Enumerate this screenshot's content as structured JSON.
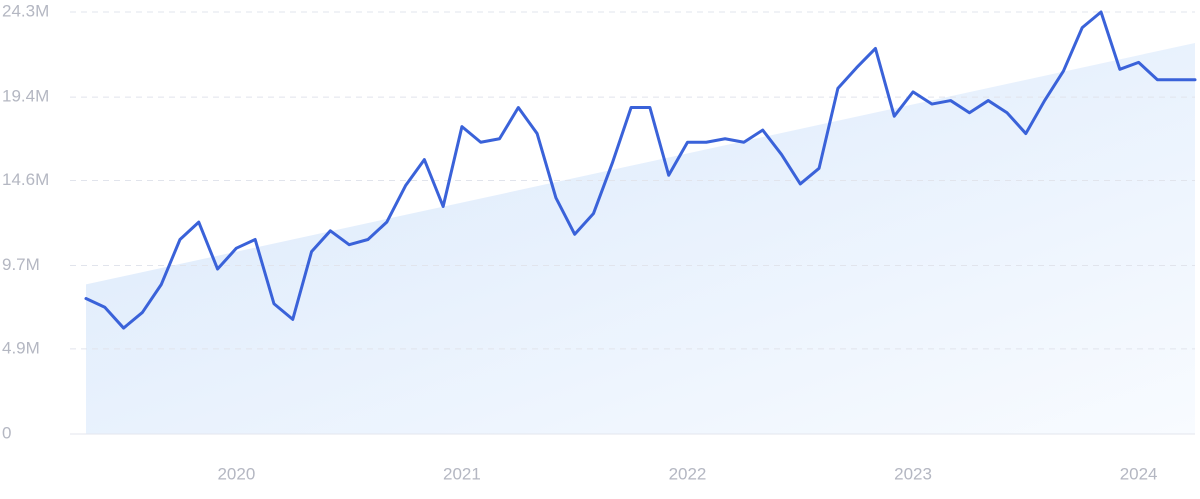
{
  "chart_data": {
    "type": "line",
    "categories": [
      null,
      null,
      null,
      null,
      null,
      null,
      null,
      null,
      "2020",
      null,
      null,
      null,
      null,
      null,
      null,
      null,
      null,
      null,
      null,
      null,
      "2021",
      null,
      null,
      null,
      null,
      null,
      null,
      null,
      null,
      null,
      null,
      null,
      "2022",
      null,
      null,
      null,
      null,
      null,
      null,
      null,
      null,
      null,
      null,
      null,
      "2023",
      null,
      null,
      null,
      null,
      null,
      null,
      null,
      null,
      null,
      null,
      null,
      "2024",
      null,
      null,
      null
    ],
    "series": [
      {
        "color": "#3a62d9",
        "values": [
          7.8,
          7.3,
          6.1,
          7.0,
          8.6,
          11.2,
          12.2,
          9.5,
          10.7,
          11.2,
          7.5,
          6.6,
          10.5,
          11.7,
          10.9,
          11.2,
          12.2,
          14.3,
          15.8,
          13.1,
          17.7,
          16.8,
          17.0,
          18.8,
          17.3,
          13.6,
          11.5,
          12.7,
          15.6,
          18.8,
          18.8,
          14.9,
          16.8,
          16.8,
          17.0,
          16.8,
          17.5,
          16.1,
          14.4,
          15.3,
          19.9,
          21.1,
          22.2,
          18.3,
          19.7,
          19.0,
          19.2,
          18.5,
          19.2,
          18.5,
          17.3,
          19.2,
          20.9,
          23.4,
          24.3,
          21.0,
          21.4,
          20.4,
          20.4,
          20.4
        ]
      }
    ],
    "ylim": [
      0,
      24.3
    ],
    "yticks": [
      0,
      {
        "value": 4.9,
        "label": "4.9M"
      },
      {
        "value": 9.7,
        "label": "9.7M"
      },
      {
        "value": 14.6,
        "label": "14.6M"
      },
      {
        "value": 19.4,
        "label": "19.4M"
      },
      {
        "value": 24.3,
        "label": "24.3M"
      }
    ],
    "grid": true
  }
}
